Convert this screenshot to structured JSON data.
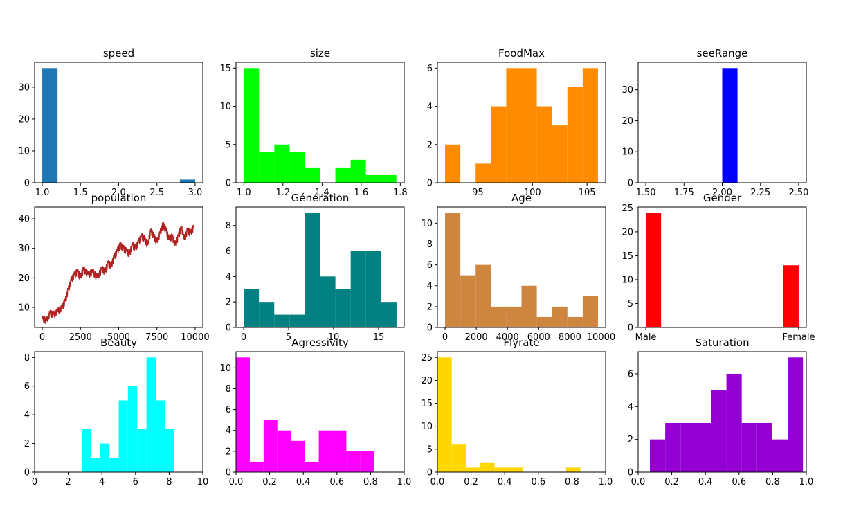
{
  "chart_data": [
    {
      "id": "speed",
      "type": "bar",
      "title": "speed",
      "color": "#1f77b4",
      "xlim": [
        0.9,
        3.1
      ],
      "ylim": [
        0,
        37.8
      ],
      "xticks": [
        1.0,
        1.5,
        2.0,
        2.5,
        3.0
      ],
      "xtick_labels": [
        "1.0",
        "1.5",
        "2.0",
        "2.5",
        "3.0"
      ],
      "yticks": [
        0,
        10,
        20,
        30
      ],
      "ytick_labels": [
        "0",
        "10",
        "20",
        "30"
      ],
      "bins": [
        [
          1.0,
          1.2,
          36
        ],
        [
          2.8,
          3.0,
          1
        ]
      ]
    },
    {
      "id": "size",
      "type": "bar",
      "title": "size",
      "color": "#00ff00",
      "xlim": [
        0.96,
        1.82
      ],
      "ylim": [
        0,
        15.75
      ],
      "xticks": [
        1.0,
        1.2,
        1.4,
        1.6,
        1.8
      ],
      "xtick_labels": [
        "1.0",
        "1.2",
        "1.4",
        "1.6",
        "1.8"
      ],
      "yticks": [
        0,
        5,
        10,
        15
      ],
      "ytick_labels": [
        "0",
        "5",
        "10",
        "15"
      ],
      "bins": [
        [
          1.0,
          1.078,
          15
        ],
        [
          1.078,
          1.156,
          4
        ],
        [
          1.156,
          1.234,
          5
        ],
        [
          1.234,
          1.312,
          4
        ],
        [
          1.312,
          1.39,
          2
        ],
        [
          1.468,
          1.546,
          2
        ],
        [
          1.546,
          1.624,
          3
        ],
        [
          1.624,
          1.702,
          1
        ],
        [
          1.702,
          1.78,
          1
        ]
      ]
    },
    {
      "id": "foodmax",
      "type": "bar",
      "title": "FoodMax",
      "color": "#ff8c00",
      "xlim": [
        91.3,
        106.7
      ],
      "ylim": [
        0,
        6.3
      ],
      "xticks": [
        95,
        100,
        105
      ],
      "xtick_labels": [
        "95",
        "100",
        "105"
      ],
      "yticks": [
        0,
        2,
        4,
        6
      ],
      "ytick_labels": [
        "0",
        "2",
        "4",
        "6"
      ],
      "bins": [
        [
          92,
          93.4,
          2
        ],
        [
          94.8,
          96.2,
          1
        ],
        [
          96.2,
          97.6,
          4
        ],
        [
          97.6,
          99,
          6
        ],
        [
          99,
          100.4,
          6
        ],
        [
          100.4,
          101.8,
          4
        ],
        [
          101.8,
          103.2,
          3
        ],
        [
          103.2,
          104.6,
          5
        ],
        [
          104.6,
          106,
          6
        ]
      ]
    },
    {
      "id": "seerange",
      "type": "bar",
      "title": "seeRange",
      "color": "#0000ff",
      "xlim": [
        1.45,
        2.55
      ],
      "ylim": [
        0,
        38.85
      ],
      "xticks": [
        1.5,
        1.75,
        2.0,
        2.25,
        2.5
      ],
      "xtick_labels": [
        "1.50",
        "1.75",
        "2.00",
        "2.25",
        "2.50"
      ],
      "yticks": [
        0,
        10,
        20,
        30
      ],
      "ytick_labels": [
        "0",
        "10",
        "20",
        "30"
      ],
      "bins": [
        [
          2.0,
          2.1,
          37
        ]
      ]
    },
    {
      "id": "population",
      "type": "line",
      "title": "population",
      "color": "#b22222",
      "xlim": [
        -500,
        10500
      ],
      "ylim": [
        3.2,
        44.0
      ],
      "xticks": [
        0,
        2500,
        5000,
        7500,
        10000
      ],
      "xtick_labels": [
        "0",
        "2500",
        "5000",
        "7500",
        "10000"
      ],
      "yticks": [
        10,
        20,
        30,
        40
      ],
      "ytick_labels": [
        "10",
        "20",
        "30",
        "40"
      ],
      "x": [
        0,
        300,
        500,
        700,
        1000,
        1300,
        1500,
        1700,
        1900,
        2100,
        2300,
        2500,
        2700,
        3000,
        3300,
        3600,
        3900,
        4100,
        4300,
        4500,
        4700,
        4900,
        5100,
        5300,
        5500,
        5700,
        5900,
        6100,
        6300,
        6500,
        6700,
        6900,
        7100,
        7300,
        7500,
        7700,
        7900,
        8100,
        8300,
        8500,
        8700,
        8900,
        9100,
        9300,
        9500,
        9700,
        9900
      ],
      "values": [
        6,
        5.5,
        8,
        7.5,
        8.5,
        10,
        12,
        16,
        19,
        21,
        22,
        20,
        23,
        21,
        22,
        20,
        23,
        22,
        25,
        24,
        27,
        29,
        31,
        30,
        29,
        28,
        31,
        30,
        32,
        34,
        33,
        31,
        36,
        34,
        32,
        35,
        38,
        36,
        33,
        34,
        31,
        34,
        37,
        33,
        36,
        35,
        37
      ]
    },
    {
      "id": "generation",
      "type": "bar",
      "title": "Génération",
      "color": "#008080",
      "xlim": [
        -0.85,
        17.85
      ],
      "ylim": [
        0,
        9.45
      ],
      "xticks": [
        0,
        5,
        10,
        15
      ],
      "xtick_labels": [
        "0",
        "5",
        "10",
        "15"
      ],
      "yticks": [
        0,
        2,
        4,
        6,
        8
      ],
      "ytick_labels": [
        "0",
        "2",
        "4",
        "6",
        "8"
      ],
      "bins": [
        [
          0,
          1.7,
          3
        ],
        [
          1.7,
          3.4,
          2
        ],
        [
          3.4,
          5.1,
          1
        ],
        [
          5.1,
          6.8,
          1
        ],
        [
          6.8,
          8.5,
          9
        ],
        [
          8.5,
          10.2,
          4
        ],
        [
          10.2,
          11.9,
          3
        ],
        [
          11.9,
          13.6,
          6
        ],
        [
          13.6,
          15.3,
          6
        ],
        [
          15.3,
          17.0,
          2
        ]
      ]
    },
    {
      "id": "age",
      "type": "bar",
      "title": "Age",
      "color": "#cd853f",
      "xlim": [
        -490,
        10290
      ],
      "ylim": [
        0,
        11.55
      ],
      "xticks": [
        0,
        2000,
        4000,
        6000,
        8000,
        10000
      ],
      "xtick_labels": [
        "0",
        "2000",
        "4000",
        "6000",
        "8000",
        "10000"
      ],
      "yticks": [
        0,
        2,
        4,
        6,
        8,
        10
      ],
      "ytick_labels": [
        "0",
        "2",
        "4",
        "6",
        "8",
        "10"
      ],
      "bins": [
        [
          0,
          980,
          11
        ],
        [
          980,
          1960,
          5
        ],
        [
          1960,
          2940,
          6
        ],
        [
          2940,
          3920,
          2
        ],
        [
          3920,
          4900,
          2
        ],
        [
          4900,
          5880,
          4
        ],
        [
          5880,
          6860,
          1
        ],
        [
          6860,
          7840,
          2
        ],
        [
          7840,
          8820,
          1
        ],
        [
          8820,
          9800,
          3
        ]
      ]
    },
    {
      "id": "gender",
      "type": "bar",
      "title": "Gender",
      "color": "#ff0000",
      "xlim": [
        -0.05,
        1.05
      ],
      "ylim": [
        0,
        25.2
      ],
      "xticks": [
        0,
        1
      ],
      "xtick_labels": [
        "Male",
        "Female"
      ],
      "yticks": [
        0,
        5,
        10,
        15,
        20,
        25
      ],
      "ytick_labels": [
        "0",
        "5",
        "10",
        "15",
        "20",
        "25"
      ],
      "bins": [
        [
          0,
          0.1,
          24
        ],
        [
          0.9,
          1.0,
          13
        ]
      ]
    },
    {
      "id": "beauty",
      "type": "bar",
      "title": "Beauty",
      "color": "#00ffff",
      "xlim": [
        0,
        10
      ],
      "ylim": [
        0,
        8.4
      ],
      "xticks": [
        0,
        2,
        4,
        6,
        8,
        10
      ],
      "xtick_labels": [
        "0",
        "2",
        "4",
        "6",
        "8",
        "10"
      ],
      "yticks": [
        0,
        2,
        4,
        6,
        8
      ],
      "ytick_labels": [
        "0",
        "2",
        "4",
        "6",
        "8"
      ],
      "bins": [
        [
          2.8,
          3.35,
          3
        ],
        [
          3.35,
          3.9,
          1
        ],
        [
          3.9,
          4.45,
          2
        ],
        [
          4.45,
          5.0,
          1
        ],
        [
          5.0,
          5.55,
          5
        ],
        [
          5.55,
          6.1,
          6
        ],
        [
          6.1,
          6.65,
          3
        ],
        [
          6.65,
          7.2,
          8
        ],
        [
          7.2,
          7.75,
          5
        ],
        [
          7.75,
          8.3,
          3
        ]
      ]
    },
    {
      "id": "agressivity",
      "type": "bar",
      "title": "Agressivity",
      "color": "#ff00ff",
      "xlim": [
        0,
        1
      ],
      "ylim": [
        0,
        11.55
      ],
      "xticks": [
        0,
        0.2,
        0.4,
        0.6,
        0.8,
        1.0
      ],
      "xtick_labels": [
        "0.0",
        "0.2",
        "0.4",
        "0.6",
        "0.8",
        "1.0"
      ],
      "yticks": [
        0,
        2,
        4,
        6,
        8,
        10
      ],
      "ytick_labels": [
        "0",
        "2",
        "4",
        "6",
        "8",
        "10"
      ],
      "bins": [
        [
          0,
          0.082,
          11
        ],
        [
          0.082,
          0.164,
          1
        ],
        [
          0.164,
          0.246,
          5
        ],
        [
          0.246,
          0.328,
          4
        ],
        [
          0.328,
          0.41,
          3
        ],
        [
          0.41,
          0.492,
          1
        ],
        [
          0.492,
          0.574,
          4
        ],
        [
          0.574,
          0.656,
          4
        ],
        [
          0.656,
          0.738,
          2
        ],
        [
          0.738,
          0.82,
          2
        ]
      ]
    },
    {
      "id": "flyrate",
      "type": "bar",
      "title": "Flyrate",
      "color": "#ffd700",
      "xlim": [
        0,
        1
      ],
      "ylim": [
        0,
        26.25
      ],
      "xticks": [
        0,
        0.2,
        0.4,
        0.6,
        0.8,
        1.0
      ],
      "xtick_labels": [
        "0.0",
        "0.2",
        "0.4",
        "0.6",
        "0.8",
        "1.0"
      ],
      "yticks": [
        0,
        5,
        10,
        15,
        20,
        25
      ],
      "ytick_labels": [
        "0",
        "5",
        "10",
        "15",
        "20",
        "25"
      ],
      "bins": [
        [
          0,
          0.085,
          25
        ],
        [
          0.085,
          0.17,
          6
        ],
        [
          0.17,
          0.255,
          1
        ],
        [
          0.255,
          0.34,
          2
        ],
        [
          0.34,
          0.425,
          1
        ],
        [
          0.425,
          0.51,
          1
        ],
        [
          0.765,
          0.85,
          1
        ]
      ]
    },
    {
      "id": "saturation",
      "type": "bar",
      "title": "Saturation",
      "color": "#9400d3",
      "xlim": [
        0,
        1
      ],
      "ylim": [
        0,
        7.35
      ],
      "xticks": [
        0,
        0.2,
        0.4,
        0.6,
        0.8,
        1.0
      ],
      "xtick_labels": [
        "0.0",
        "0.2",
        "0.4",
        "0.6",
        "0.8",
        "1.0"
      ],
      "yticks": [
        0,
        2,
        4,
        6
      ],
      "ytick_labels": [
        "0",
        "2",
        "4",
        "6"
      ],
      "bins": [
        [
          0.07,
          0.161,
          2
        ],
        [
          0.161,
          0.252,
          3
        ],
        [
          0.252,
          0.343,
          3
        ],
        [
          0.343,
          0.434,
          3
        ],
        [
          0.434,
          0.525,
          5
        ],
        [
          0.525,
          0.616,
          6
        ],
        [
          0.616,
          0.707,
          3
        ],
        [
          0.707,
          0.798,
          3
        ],
        [
          0.798,
          0.889,
          2
        ],
        [
          0.889,
          0.98,
          7
        ]
      ]
    }
  ]
}
